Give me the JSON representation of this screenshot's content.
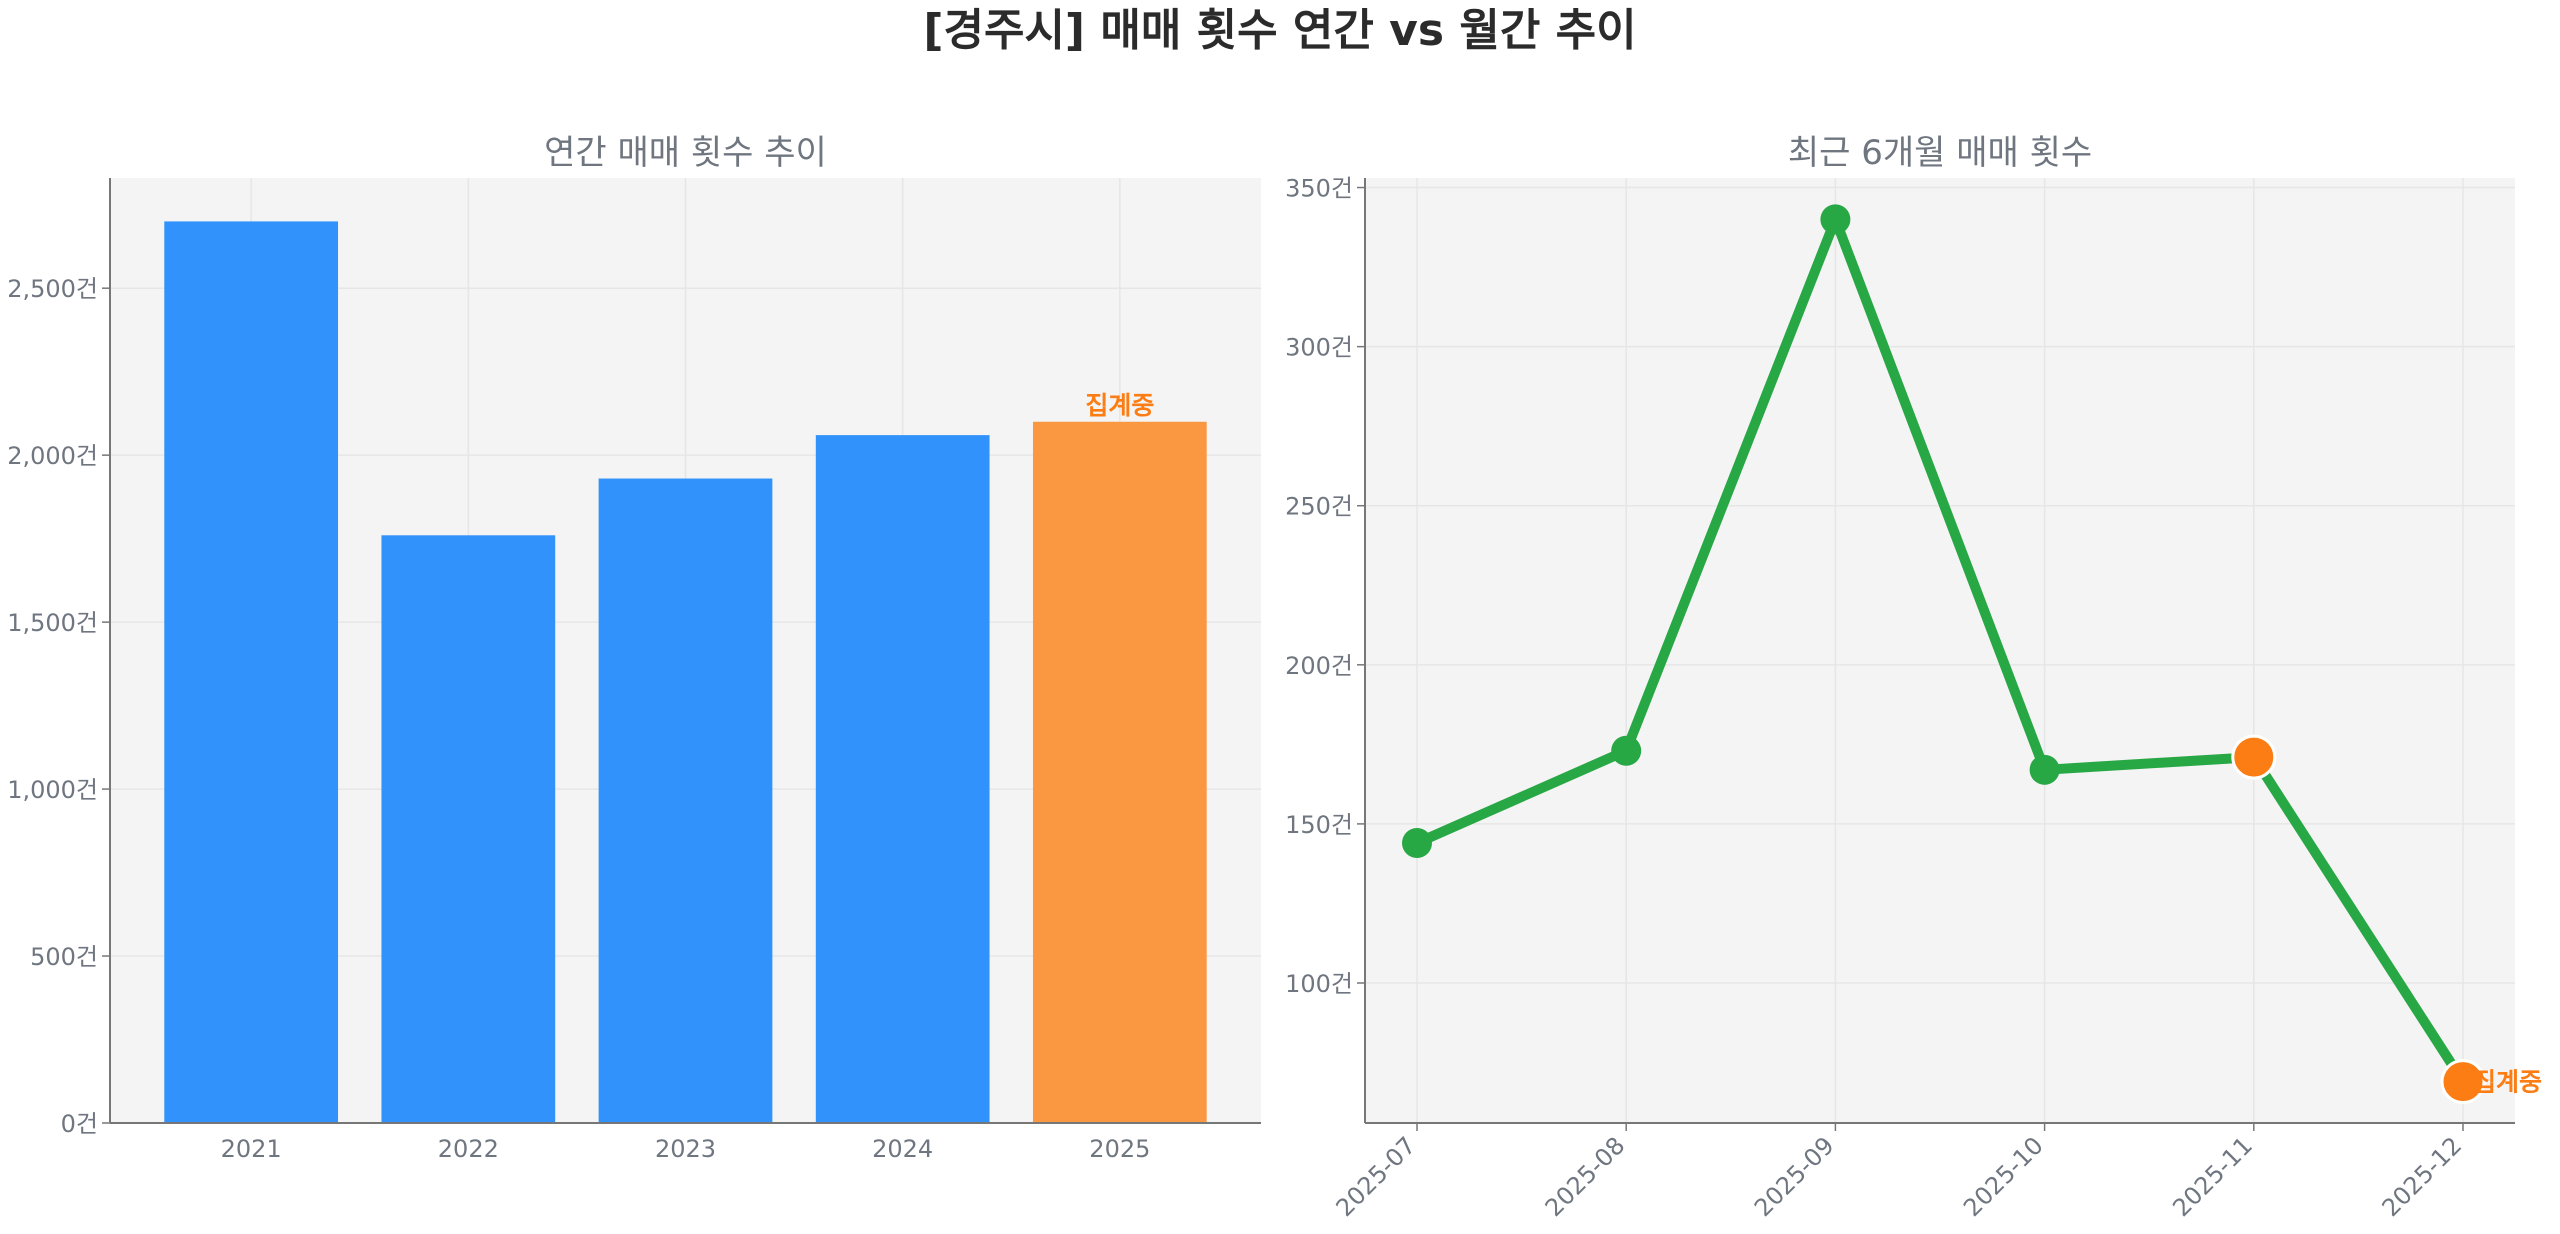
{
  "title": "[경주시] 매매 횟수 연간 vs 월간 추이",
  "chart_data": [
    {
      "type": "bar",
      "title": "연간 매매 횟수 추이",
      "categories": [
        "2021",
        "2022",
        "2023",
        "2024",
        "2025"
      ],
      "values": [
        2700,
        1760,
        1930,
        2060,
        2100
      ],
      "colors": [
        "#3192fb",
        "#3192fb",
        "#3192fb",
        "#3192fb",
        "#f99841"
      ],
      "annotation": {
        "category": "2025",
        "text": "집계중",
        "color": "#fb7d13"
      },
      "ylim": [
        0,
        2830
      ],
      "yticks": [
        0,
        500,
        1000,
        1500,
        2000,
        2500
      ],
      "ytick_labels": [
        "0건",
        "500건",
        "1,000건",
        "1,500건",
        "2,000건",
        "2,500건"
      ],
      "grid": true
    },
    {
      "type": "line",
      "title": "최근 6개월 매매 횟수",
      "x": [
        "2025-07",
        "2025-08",
        "2025-09",
        "2025-10",
        "2025-11",
        "2025-12"
      ],
      "values": [
        144,
        173,
        340,
        167,
        171,
        69
      ],
      "line_color": "#28a745",
      "highlight_points": [
        "2025-11",
        "2025-12"
      ],
      "highlight_color": "#fb7d13",
      "annotation": {
        "x": "2025-12",
        "text": "집계중",
        "color": "#fb7d13"
      },
      "ylim": [
        56,
        353
      ],
      "yticks": [
        100,
        150,
        200,
        250,
        300,
        350
      ],
      "ytick_labels": [
        "100건",
        "150건",
        "200건",
        "250건",
        "300건",
        "350건"
      ],
      "grid": true
    }
  ]
}
